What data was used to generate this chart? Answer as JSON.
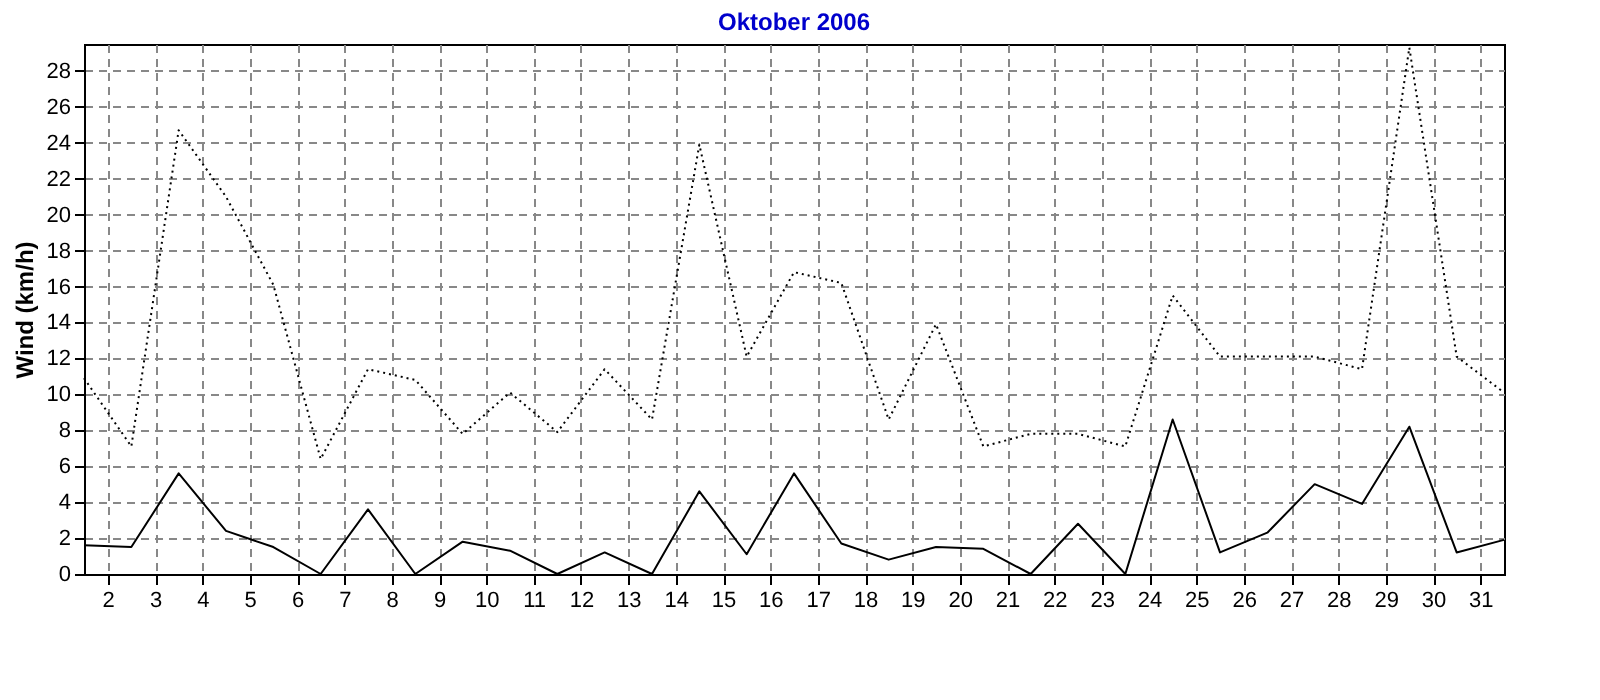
{
  "chart_data": {
    "type": "line",
    "title": "Oktober 2006",
    "ylabel": "Wind  (km/h)",
    "x": [
      1.5,
      2.5,
      3.5,
      4.5,
      5.5,
      6.5,
      7.5,
      8.5,
      9.5,
      10.5,
      11.5,
      12.5,
      13.5,
      14.5,
      15.5,
      16.5,
      17.5,
      18.5,
      19.5,
      20.5,
      21.5,
      22.5,
      23.5,
      24.5,
      25.5,
      26.5,
      27.5,
      28.5,
      29.5,
      30.5,
      31.5
    ],
    "series": [
      {
        "color": "#000000",
        "line_style": "solid",
        "values": [
          1.6,
          1.5,
          5.6,
          2.4,
          1.5,
          0,
          3.6,
          0,
          1.8,
          1.3,
          0,
          1.2,
          0,
          4.6,
          1.1,
          5.6,
          1.7,
          0.8,
          1.5,
          1.4,
          0,
          2.8,
          0,
          8.6,
          1.2,
          2.3,
          5.0,
          3.9,
          8.2,
          1.2,
          1.9
        ]
      },
      {
        "color": "#000000",
        "line_style": "dotted",
        "values": [
          10.9,
          7.1,
          24.7,
          21,
          16.1,
          6.4,
          11.4,
          10.8,
          7.8,
          10.1,
          7.9,
          11.4,
          8.6,
          23.9,
          12.1,
          16.8,
          16.2,
          8.6,
          13.9,
          7.1,
          7.8,
          7.8,
          7.1,
          15.5,
          12.1,
          12.1,
          12.1,
          11.4,
          29.3,
          12.1,
          10.1
        ]
      }
    ],
    "xlim": [
      1.5,
      31.5
    ],
    "xticks": [
      2,
      3,
      4,
      5,
      6,
      7,
      8,
      9,
      10,
      11,
      12,
      13,
      14,
      15,
      16,
      17,
      18,
      19,
      20,
      21,
      22,
      23,
      24,
      25,
      26,
      27,
      28,
      29,
      30,
      31
    ],
    "ylim": [
      0,
      29.5
    ],
    "yticks": [
      0,
      2,
      4,
      6,
      8,
      10,
      12,
      14,
      16,
      18,
      20,
      22,
      24,
      26,
      28
    ],
    "grid": true,
    "marker": "none"
  }
}
